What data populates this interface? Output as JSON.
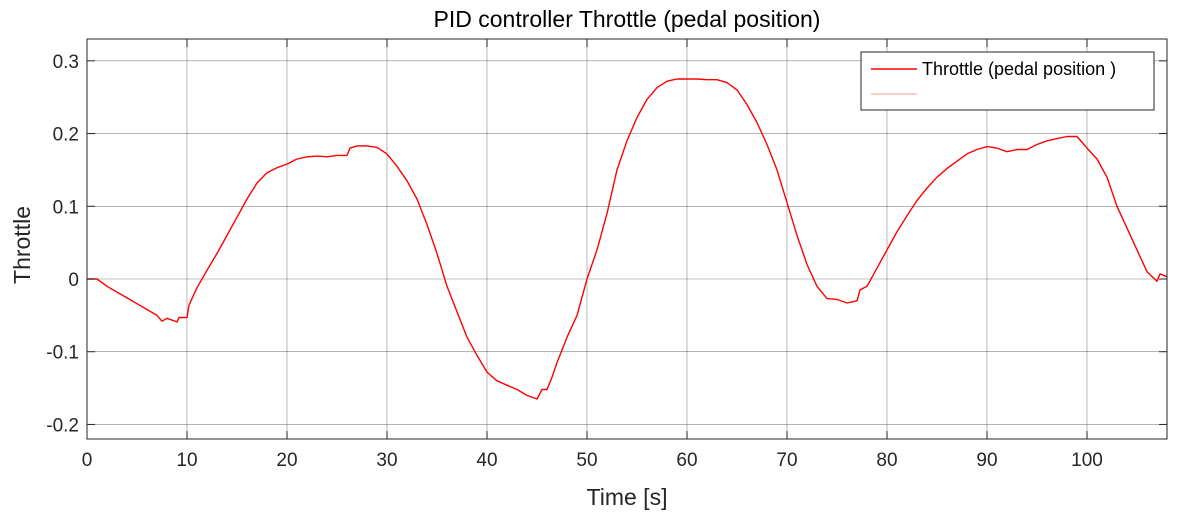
{
  "chart_data": {
    "type": "line",
    "title": "PID controller Throttle (pedal position)",
    "xlabel": "Time [s]",
    "ylabel": "Throttle",
    "xlim": [
      0,
      108
    ],
    "ylim": [
      -0.22,
      0.33
    ],
    "xticks": [
      0,
      10,
      20,
      30,
      40,
      50,
      60,
      70,
      80,
      90,
      100
    ],
    "yticks": [
      -0.2,
      -0.1,
      0,
      0.1,
      0.2,
      0.3
    ],
    "xtick_labels": [
      "0",
      "10",
      "20",
      "30",
      "40",
      "50",
      "60",
      "70",
      "80",
      "90",
      "100"
    ],
    "ytick_labels": [
      "-0.2",
      "-0.1",
      "0",
      "0.1",
      "0.2",
      "0.3"
    ],
    "grid": true,
    "legend_position": "top-right",
    "series": [
      {
        "name": "Throttle (pedal position )",
        "color": "#ff0000",
        "x": [
          0,
          1,
          2,
          3,
          4,
          5,
          6,
          7,
          7.5,
          8,
          9,
          9.2,
          10,
          10.2,
          11,
          12,
          13,
          14,
          15,
          16,
          17,
          18,
          19,
          20,
          21,
          22,
          23,
          24,
          25,
          26,
          26.3,
          27,
          28,
          29,
          30,
          31,
          32,
          33,
          34,
          35,
          36,
          37,
          38,
          39,
          40,
          41,
          42,
          43,
          44,
          45,
          45.5,
          46,
          46.5,
          47,
          48,
          49,
          50,
          51,
          52,
          53,
          54,
          55,
          56,
          57,
          58,
          59,
          60,
          61,
          62,
          63,
          64,
          65,
          66,
          67,
          68,
          69,
          70,
          71,
          72,
          73,
          74,
          75,
          76,
          77,
          77.3,
          78,
          79,
          80,
          81,
          82,
          83,
          84,
          85,
          86,
          87,
          88,
          89,
          90,
          91,
          92,
          93,
          94,
          95,
          96,
          97,
          98,
          99,
          100,
          101,
          102,
          103,
          104,
          105,
          106,
          107,
          107.3,
          108
        ],
        "values": [
          0,
          0,
          -0.01,
          -0.018,
          -0.026,
          -0.034,
          -0.042,
          -0.05,
          -0.058,
          -0.054,
          -0.059,
          -0.053,
          -0.053,
          -0.036,
          -0.012,
          0.012,
          0.035,
          0.06,
          0.085,
          0.11,
          0.132,
          0.146,
          0.153,
          0.158,
          0.165,
          0.168,
          0.169,
          0.168,
          0.17,
          0.17,
          0.18,
          0.183,
          0.183,
          0.181,
          0.172,
          0.155,
          0.135,
          0.11,
          0.075,
          0.035,
          -0.01,
          -0.045,
          -0.08,
          -0.105,
          -0.128,
          -0.14,
          -0.146,
          -0.152,
          -0.16,
          -0.165,
          -0.152,
          -0.152,
          -0.135,
          -0.115,
          -0.08,
          -0.05,
          0,
          0.04,
          0.09,
          0.15,
          0.19,
          0.222,
          0.247,
          0.263,
          0.272,
          0.275,
          0.275,
          0.275,
          0.274,
          0.274,
          0.27,
          0.26,
          0.24,
          0.215,
          0.185,
          0.15,
          0.105,
          0.06,
          0.02,
          -0.01,
          -0.027,
          -0.028,
          -0.033,
          -0.03,
          -0.015,
          -0.01,
          0.015,
          0.04,
          0.065,
          0.087,
          0.108,
          0.125,
          0.14,
          0.152,
          0.162,
          0.172,
          0.178,
          0.182,
          0.18,
          0.175,
          0.178,
          0.178,
          0.185,
          0.19,
          0.193,
          0.196,
          0.196,
          0.18,
          0.165,
          0.14,
          0.1,
          0.07,
          0.04,
          0.01,
          -0.003,
          0.007,
          0.003
        ]
      },
      {
        "name": "",
        "color": "#f7c1b6",
        "x": [],
        "values": []
      }
    ]
  }
}
